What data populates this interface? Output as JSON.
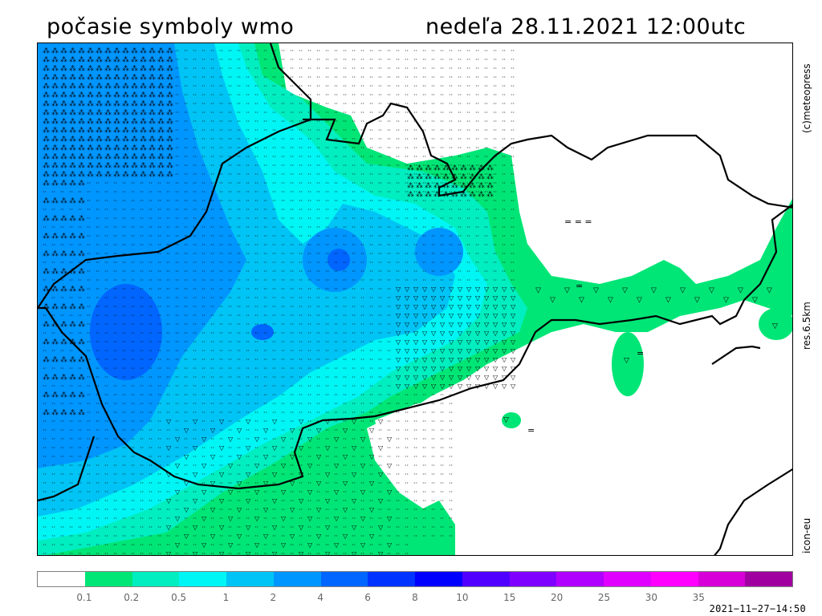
{
  "header": {
    "title": "počasie symboly wmo",
    "valid_time": "nedeľa 28.11.2021 12:00utc"
  },
  "side_labels": {
    "credit": "(c)meteopress",
    "resolution": "res.6.5km",
    "model": "icon-eu"
  },
  "legend": {
    "colors": [
      "#ffffff",
      "#00e676",
      "#00eec0",
      "#00f5f5",
      "#00c4f5",
      "#0096ff",
      "#0066ff",
      "#0033ff",
      "#0000ff",
      "#5000ff",
      "#8000ff",
      "#b000ff",
      "#e000ff",
      "#ff00ff",
      "#d800d8",
      "#a000a0"
    ],
    "labels": [
      "0.1",
      "0.2",
      "0.5",
      "1",
      "2",
      "4",
      "6",
      "8",
      "10",
      "15",
      "20",
      "25",
      "30",
      "35"
    ]
  },
  "timestamp": "2021−11−27−14:50",
  "map": {
    "symbols": {
      "snow": "⁂",
      "drizzle": "··",
      "shower": "▽",
      "fog": "="
    }
  }
}
